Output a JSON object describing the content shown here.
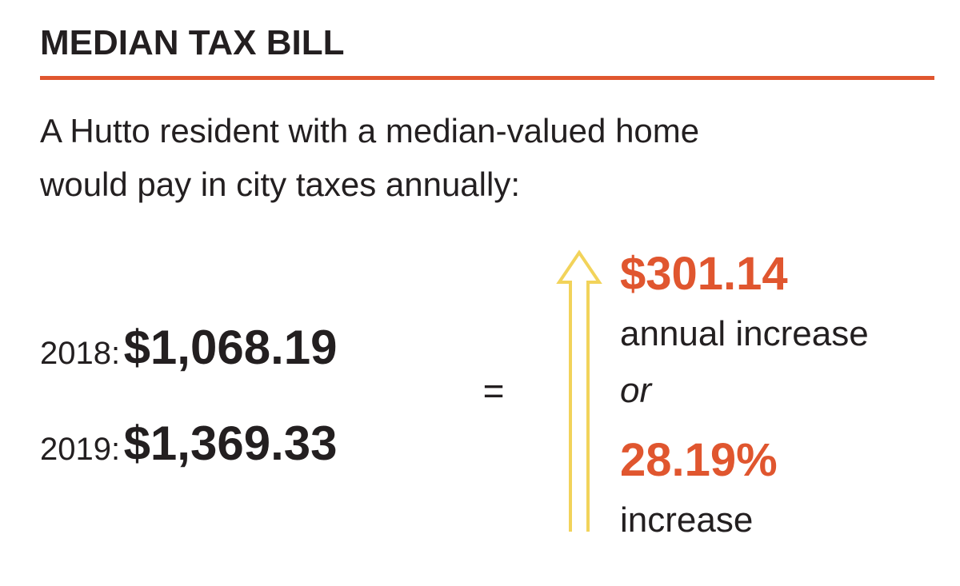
{
  "header": {
    "title": "MEDIAN TAX BILL"
  },
  "description": {
    "lines": [
      "A Hutto resident with a median-valued home",
      "would pay in city taxes annually:"
    ]
  },
  "bills": [
    {
      "label": "2018:",
      "amount": "$1,068.19"
    },
    {
      "label": "2019:",
      "amount": "$1,369.33"
    }
  ],
  "equals": "=",
  "result": {
    "amount": "$301.14",
    "amount_caption": "annual increase",
    "connector": "or",
    "percent": "28.19%",
    "percent_caption": "increase"
  }
}
